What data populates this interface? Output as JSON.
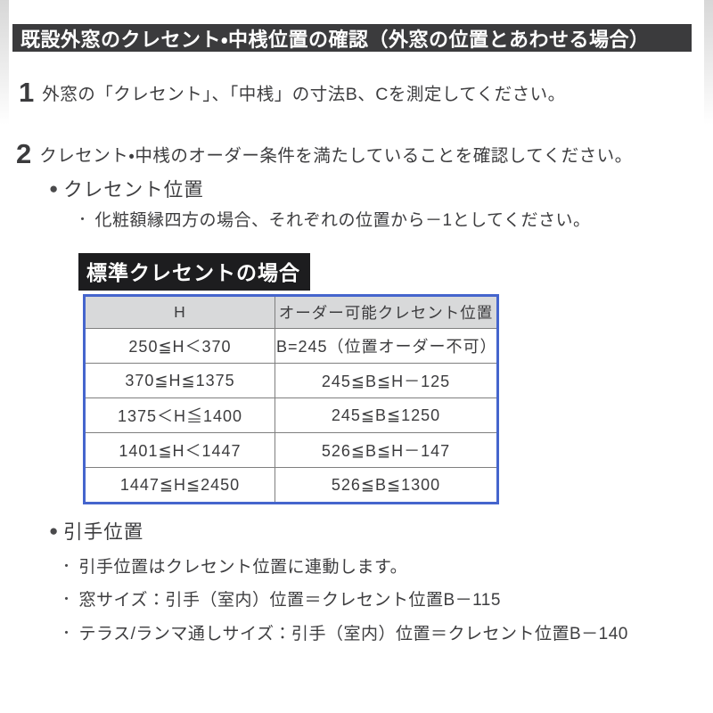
{
  "header": {
    "title": "既設外窓のクレセント・中桟位置の確認（外窓の位置とあわせる場合）"
  },
  "steps": [
    {
      "number": "1",
      "text": "外窓の「クレセント」、「中桟」の寸法B、Cを測定してください。"
    },
    {
      "number": "2",
      "text": "クレセント・中桟のオーダー条件を満たしていることを確認してください。"
    }
  ],
  "bullet_char": "●",
  "note_bullet_char": "・",
  "crescent_section": {
    "heading": "クレセント位置",
    "note": "化粧額縁四方の場合、それぞれの位置から－1としてください。",
    "label": "標準クレセントの場合"
  },
  "table": {
    "headers": [
      "H",
      "オーダー可能クレセント位置"
    ],
    "rows": [
      {
        "h": "250≦H＜370",
        "b": "B=245（位置オーダー不可）"
      },
      {
        "h": "370≦H≦1375",
        "b": "245≦B≦H－125"
      },
      {
        "h": "1375＜H≦1400",
        "b": "245≦B≦1250"
      },
      {
        "h": "1401≦H＜1447",
        "b": "526≦B≦H－147"
      },
      {
        "h": "1447≦H≦2450",
        "b": "526≦B≦1300"
      }
    ]
  },
  "handle_section": {
    "heading": "引手位置",
    "notes": [
      "引手位置はクレセント位置に連動します。",
      "窓サイズ：引手（室内）位置＝クレセント位置B－115",
      "テラス/ランマ通しサイズ：引手（室内）位置＝クレセント位置B－140"
    ]
  },
  "colors": {
    "title_bar_bg": "#3b3b3d",
    "label_bg": "#1d1d1f",
    "body_text": "#3d3d3f",
    "table_border_blue": "#4565cd",
    "table_header_bg": "#d8d9da",
    "table_inner_line": "#7f7f7f"
  }
}
